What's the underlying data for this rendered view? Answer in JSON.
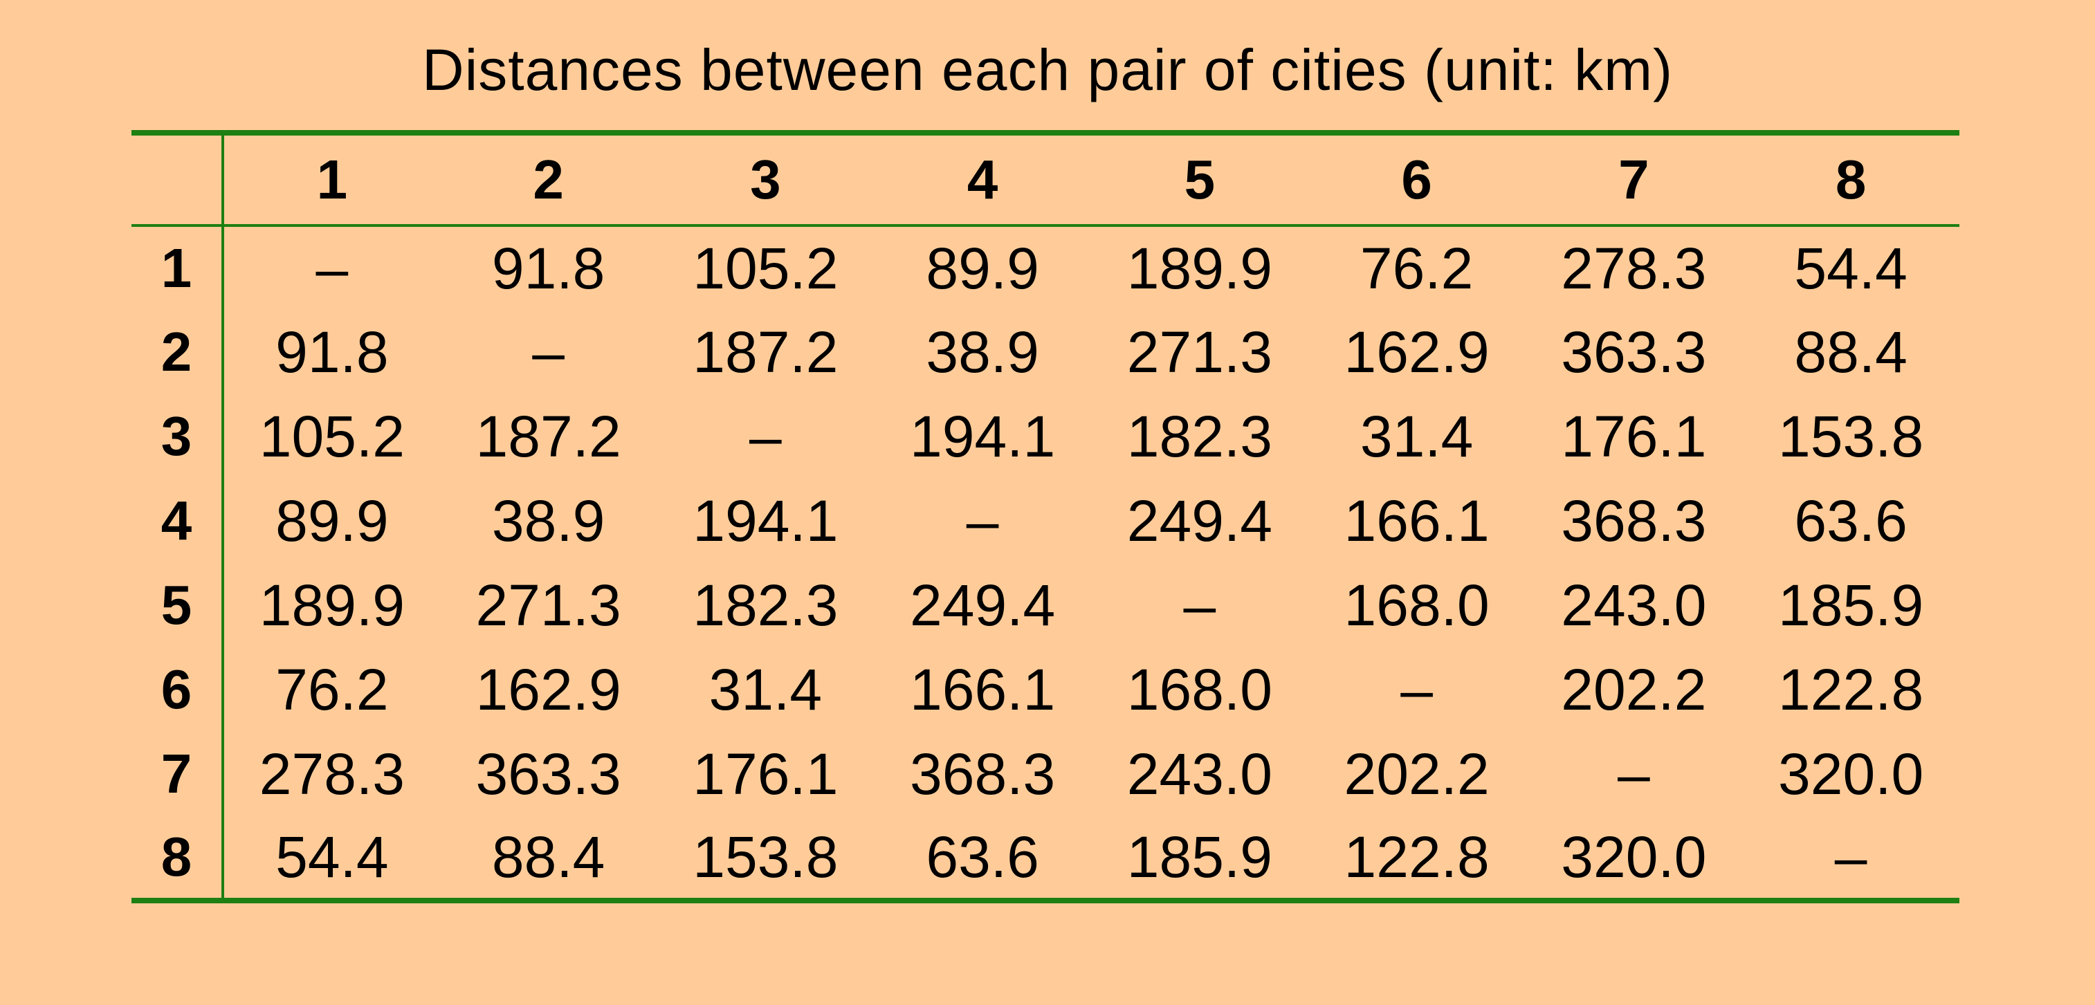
{
  "title": "Distances between each pair of cities (unit: km)",
  "colors": {
    "background": "#FFCC99",
    "rule": "#1E7F12",
    "text": "#000000"
  },
  "chart_data": {
    "type": "table",
    "title": "Distances between each pair of cities (unit: km)",
    "columns": [
      "1",
      "2",
      "3",
      "4",
      "5",
      "6",
      "7",
      "8"
    ],
    "rows": [
      {
        "label": "1",
        "cells": [
          "–",
          "91.8",
          "105.2",
          "89.9",
          "189.9",
          "76.2",
          "278.3",
          "54.4"
        ]
      },
      {
        "label": "2",
        "cells": [
          "91.8",
          "–",
          "187.2",
          "38.9",
          "271.3",
          "162.9",
          "363.3",
          "88.4"
        ]
      },
      {
        "label": "3",
        "cells": [
          "105.2",
          "187.2",
          "–",
          "194.1",
          "182.3",
          "31.4",
          "176.1",
          "153.8"
        ]
      },
      {
        "label": "4",
        "cells": [
          "89.9",
          "38.9",
          "194.1",
          "–",
          "249.4",
          "166.1",
          "368.3",
          "63.6"
        ]
      },
      {
        "label": "5",
        "cells": [
          "189.9",
          "271.3",
          "182.3",
          "249.4",
          "–",
          "168.0",
          "243.0",
          "185.9"
        ]
      },
      {
        "label": "6",
        "cells": [
          "76.2",
          "162.9",
          "31.4",
          "166.1",
          "168.0",
          "–",
          "202.2",
          "122.8"
        ]
      },
      {
        "label": "7",
        "cells": [
          "278.3",
          "363.3",
          "176.1",
          "368.3",
          "243.0",
          "202.2",
          "–",
          "320.0"
        ]
      },
      {
        "label": "8",
        "cells": [
          "54.4",
          "88.4",
          "153.8",
          "63.6",
          "185.9",
          "122.8",
          "320.0",
          "–"
        ]
      }
    ]
  }
}
